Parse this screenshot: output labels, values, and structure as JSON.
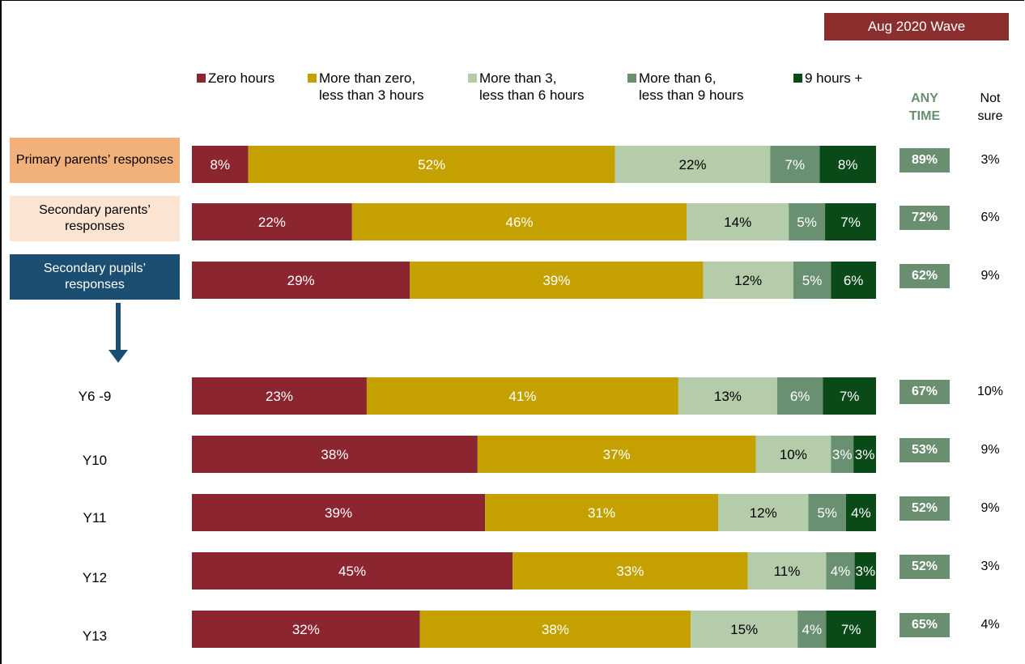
{
  "wave_badge": "Aug 2020 Wave",
  "legend": [
    {
      "label": "Zero hours",
      "color": "#8B2530"
    },
    {
      "label": "More than zero,\nless than 3 hours",
      "color": "#C5A100"
    },
    {
      "label": "More than 3,\nless than 6 hours",
      "color": "#B5CCAB"
    },
    {
      "label": "More than 6,\nless than 9 hours",
      "color": "#6A9072"
    },
    {
      "label": "9 hours +",
      "color": "#0A4A18"
    }
  ],
  "headers": {
    "any_time": "ANY\nTIME",
    "not_sure": "Not\nsure"
  },
  "groups": [
    {
      "label": "Primary parents’ responses",
      "bg": "#F2B07A",
      "text_color": "#000000"
    },
    {
      "label": "Secondary parents’ responses",
      "bg": "#FCE4D2",
      "text_color": "#000000"
    },
    {
      "label": "Secondary pupils’ responses",
      "bg": "#1C4E72",
      "text_color": "#ffffff"
    }
  ],
  "subgroup_labels": [
    "Y6 -9",
    "Y10",
    "Y11",
    "Y12",
    "Y13"
  ],
  "chart_data": {
    "type": "bar",
    "orientation": "horizontal",
    "stacked": true,
    "categories": [
      "Primary parents’ responses",
      "Secondary parents’ responses",
      "Secondary pupils’ responses",
      "Y6 -9",
      "Y10",
      "Y11",
      "Y12",
      "Y13"
    ],
    "series": [
      {
        "name": "Zero hours",
        "values": [
          8,
          22,
          29,
          23,
          38,
          39,
          45,
          32
        ],
        "color": "#8B2530",
        "label_color": "#ffffff"
      },
      {
        "name": "More than zero, less than 3 hours",
        "values": [
          52,
          46,
          39,
          41,
          37,
          31,
          33,
          38
        ],
        "color": "#C5A100",
        "label_color": "#ffffff"
      },
      {
        "name": "More than 3, less than 6 hours",
        "values": [
          22,
          14,
          12,
          13,
          10,
          12,
          11,
          15
        ],
        "color": "#B5CCAB",
        "label_color": "#000000"
      },
      {
        "name": "More than 6, less than 9 hours",
        "values": [
          7,
          5,
          5,
          6,
          3,
          5,
          4,
          4
        ],
        "color": "#6A9072",
        "label_color": "#ffffff"
      },
      {
        "name": "9 hours +",
        "values": [
          8,
          7,
          6,
          7,
          3,
          4,
          3,
          7
        ],
        "color": "#0A4A18",
        "label_color": "#ffffff"
      }
    ],
    "any_time": [
      "89%",
      "72%",
      "62%",
      "67%",
      "53%",
      "52%",
      "52%",
      "65%"
    ],
    "not_sure": [
      "3%",
      "6%",
      "9%",
      "10%",
      "9%",
      "9%",
      "3%",
      "4%"
    ],
    "xlim": [
      0,
      100
    ],
    "value_suffix": "%"
  }
}
